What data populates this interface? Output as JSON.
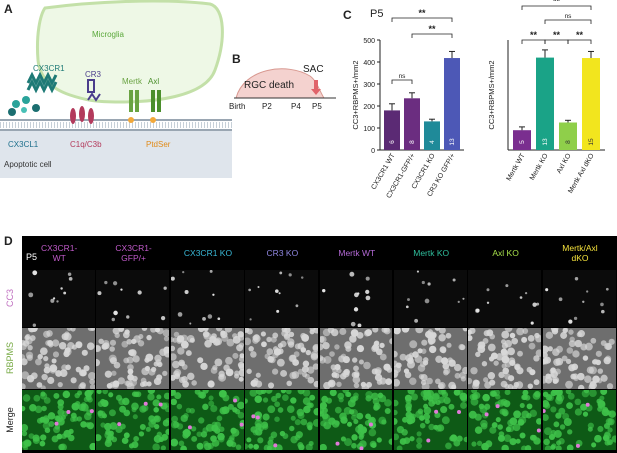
{
  "panels": {
    "A": "A",
    "B": "B",
    "C": "C",
    "D": "D"
  },
  "panelA": {
    "microglia": "Microglia",
    "cx3cr1": "CX3CR1",
    "cr3": "CR3",
    "mertk": "Mertk",
    "axl": "Axl",
    "cx3cl1": "CX3CL1",
    "c1q": "C1q/C3b",
    "ptdser": "PtdSer",
    "cell": "Apoptotic cell"
  },
  "panelB": {
    "sac": "SAC",
    "rgc": "RGC death",
    "ticks": [
      "Birth",
      "P2",
      "P4",
      "P5"
    ]
  },
  "chart_data": [
    {
      "type": "bar",
      "title": "P5",
      "ylabel": "CC3+RBPMS+/mm2",
      "ylim": [
        0,
        500
      ],
      "yticks": [
        "0",
        "100",
        "200",
        "300",
        "400",
        "500"
      ],
      "categories": [
        "CX3CR1 WT",
        "CX3CR1-GFP/+",
        "CX3CR1 KO",
        "CR3 KO GFP/+"
      ],
      "values": [
        180,
        235,
        130,
        418
      ],
      "errors": [
        30,
        25,
        10,
        30
      ],
      "n": [
        "6",
        "8",
        "4",
        "13"
      ],
      "colors": [
        "#5b2a74",
        "#6b2d80",
        "#1f8a99",
        "#4d58b6"
      ],
      "comparisons": [
        {
          "from": 0,
          "to": 1,
          "label": "ns"
        },
        {
          "from": 0,
          "to": 3,
          "label": "**"
        },
        {
          "from": 1,
          "to": 3,
          "label": "**"
        }
      ]
    },
    {
      "type": "bar",
      "ylabel": "CC3+RBPMS+/mm2",
      "ylim": [
        0,
        500
      ],
      "yticks": [
        "0",
        "100",
        "200",
        "300",
        "400",
        "500"
      ],
      "categories": [
        "Mertk WT",
        "Mertk KO",
        "Axl KO",
        "Mertk Axl dKO"
      ],
      "values": [
        90,
        420,
        125,
        418
      ],
      "errors": [
        15,
        35,
        10,
        30
      ],
      "n": [
        "5",
        "13",
        "8",
        "15"
      ],
      "colors": [
        "#7a2e8f",
        "#1aa387",
        "#8fcf4a",
        "#f2e51e"
      ],
      "comparisons": [
        {
          "from": 0,
          "to": 1,
          "label": "**"
        },
        {
          "from": 1,
          "to": 2,
          "label": "**"
        },
        {
          "from": 2,
          "to": 3,
          "label": "**"
        },
        {
          "from": 1,
          "to": 3,
          "label": "ns"
        },
        {
          "from": 0,
          "to": 3,
          "label": "**"
        }
      ]
    }
  ],
  "panelD": {
    "columns": [
      {
        "label": "CX3CR1-\nWT",
        "color": "#c05ac9"
      },
      {
        "label": "CX3CR1-\nGFP/+",
        "color": "#c05ac9"
      },
      {
        "label": "CX3CR1 KO",
        "color": "#39b8d6"
      },
      {
        "label": "CR3 KO",
        "color": "#8f86e0"
      },
      {
        "label": "Mertk WT",
        "color": "#b46ad6"
      },
      {
        "label": "Mertk KO",
        "color": "#2fbf9d"
      },
      {
        "label": "Axl KO",
        "color": "#a6e04a"
      },
      {
        "label": "Mertk/Axl\ndKO",
        "color": "#f5e23c"
      }
    ],
    "rows": [
      {
        "label": "CC3",
        "color": "#c070c0"
      },
      {
        "label": "RBPMS",
        "color": "#77aa44"
      },
      {
        "label": "Merge",
        "color": "#222222"
      }
    ],
    "age": "P5"
  }
}
